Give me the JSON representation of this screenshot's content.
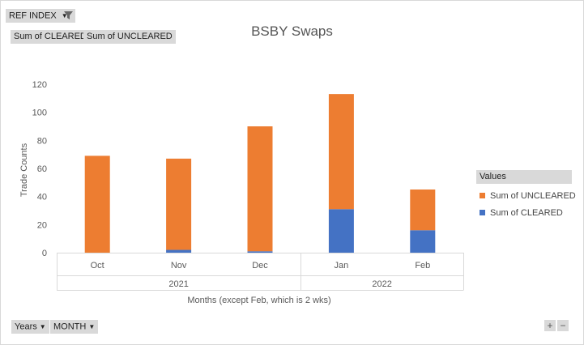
{
  "filters": {
    "ref_index": "REF INDEX",
    "sum_cleared": "Sum of CLEARED",
    "sum_uncleared": "Sum of UNCLEARED"
  },
  "axis_fields": {
    "years": "Years",
    "month": "MONTH"
  },
  "legend": {
    "header": "Values",
    "items": [
      "Sum of UNCLEARED",
      "Sum of CLEARED"
    ]
  },
  "zoom": {
    "plus": "+",
    "minus": "−"
  },
  "chart_data": {
    "type": "bar",
    "stacked": true,
    "title": "BSBY Swaps",
    "xlabel": "Months (except Feb, which is 2 wks)",
    "ylabel": "Trade Counts",
    "ylim": [
      0,
      120
    ],
    "yticks": [
      0,
      20,
      40,
      60,
      80,
      100,
      120
    ],
    "grid": false,
    "legend_position": "right",
    "categories": [
      "Oct",
      "Nov",
      "Dec",
      "Jan",
      "Feb"
    ],
    "groups": [
      {
        "label": "2021",
        "categories": [
          "Oct",
          "Nov",
          "Dec"
        ]
      },
      {
        "label": "2022",
        "categories": [
          "Jan",
          "Feb"
        ]
      }
    ],
    "series": [
      {
        "name": "Sum of CLEARED",
        "color": "#4472c4",
        "values": [
          0,
          2,
          1,
          31,
          16
        ]
      },
      {
        "name": "Sum of UNCLEARED",
        "color": "#ed7d31",
        "values": [
          69,
          65,
          89,
          82,
          29
        ]
      }
    ]
  }
}
